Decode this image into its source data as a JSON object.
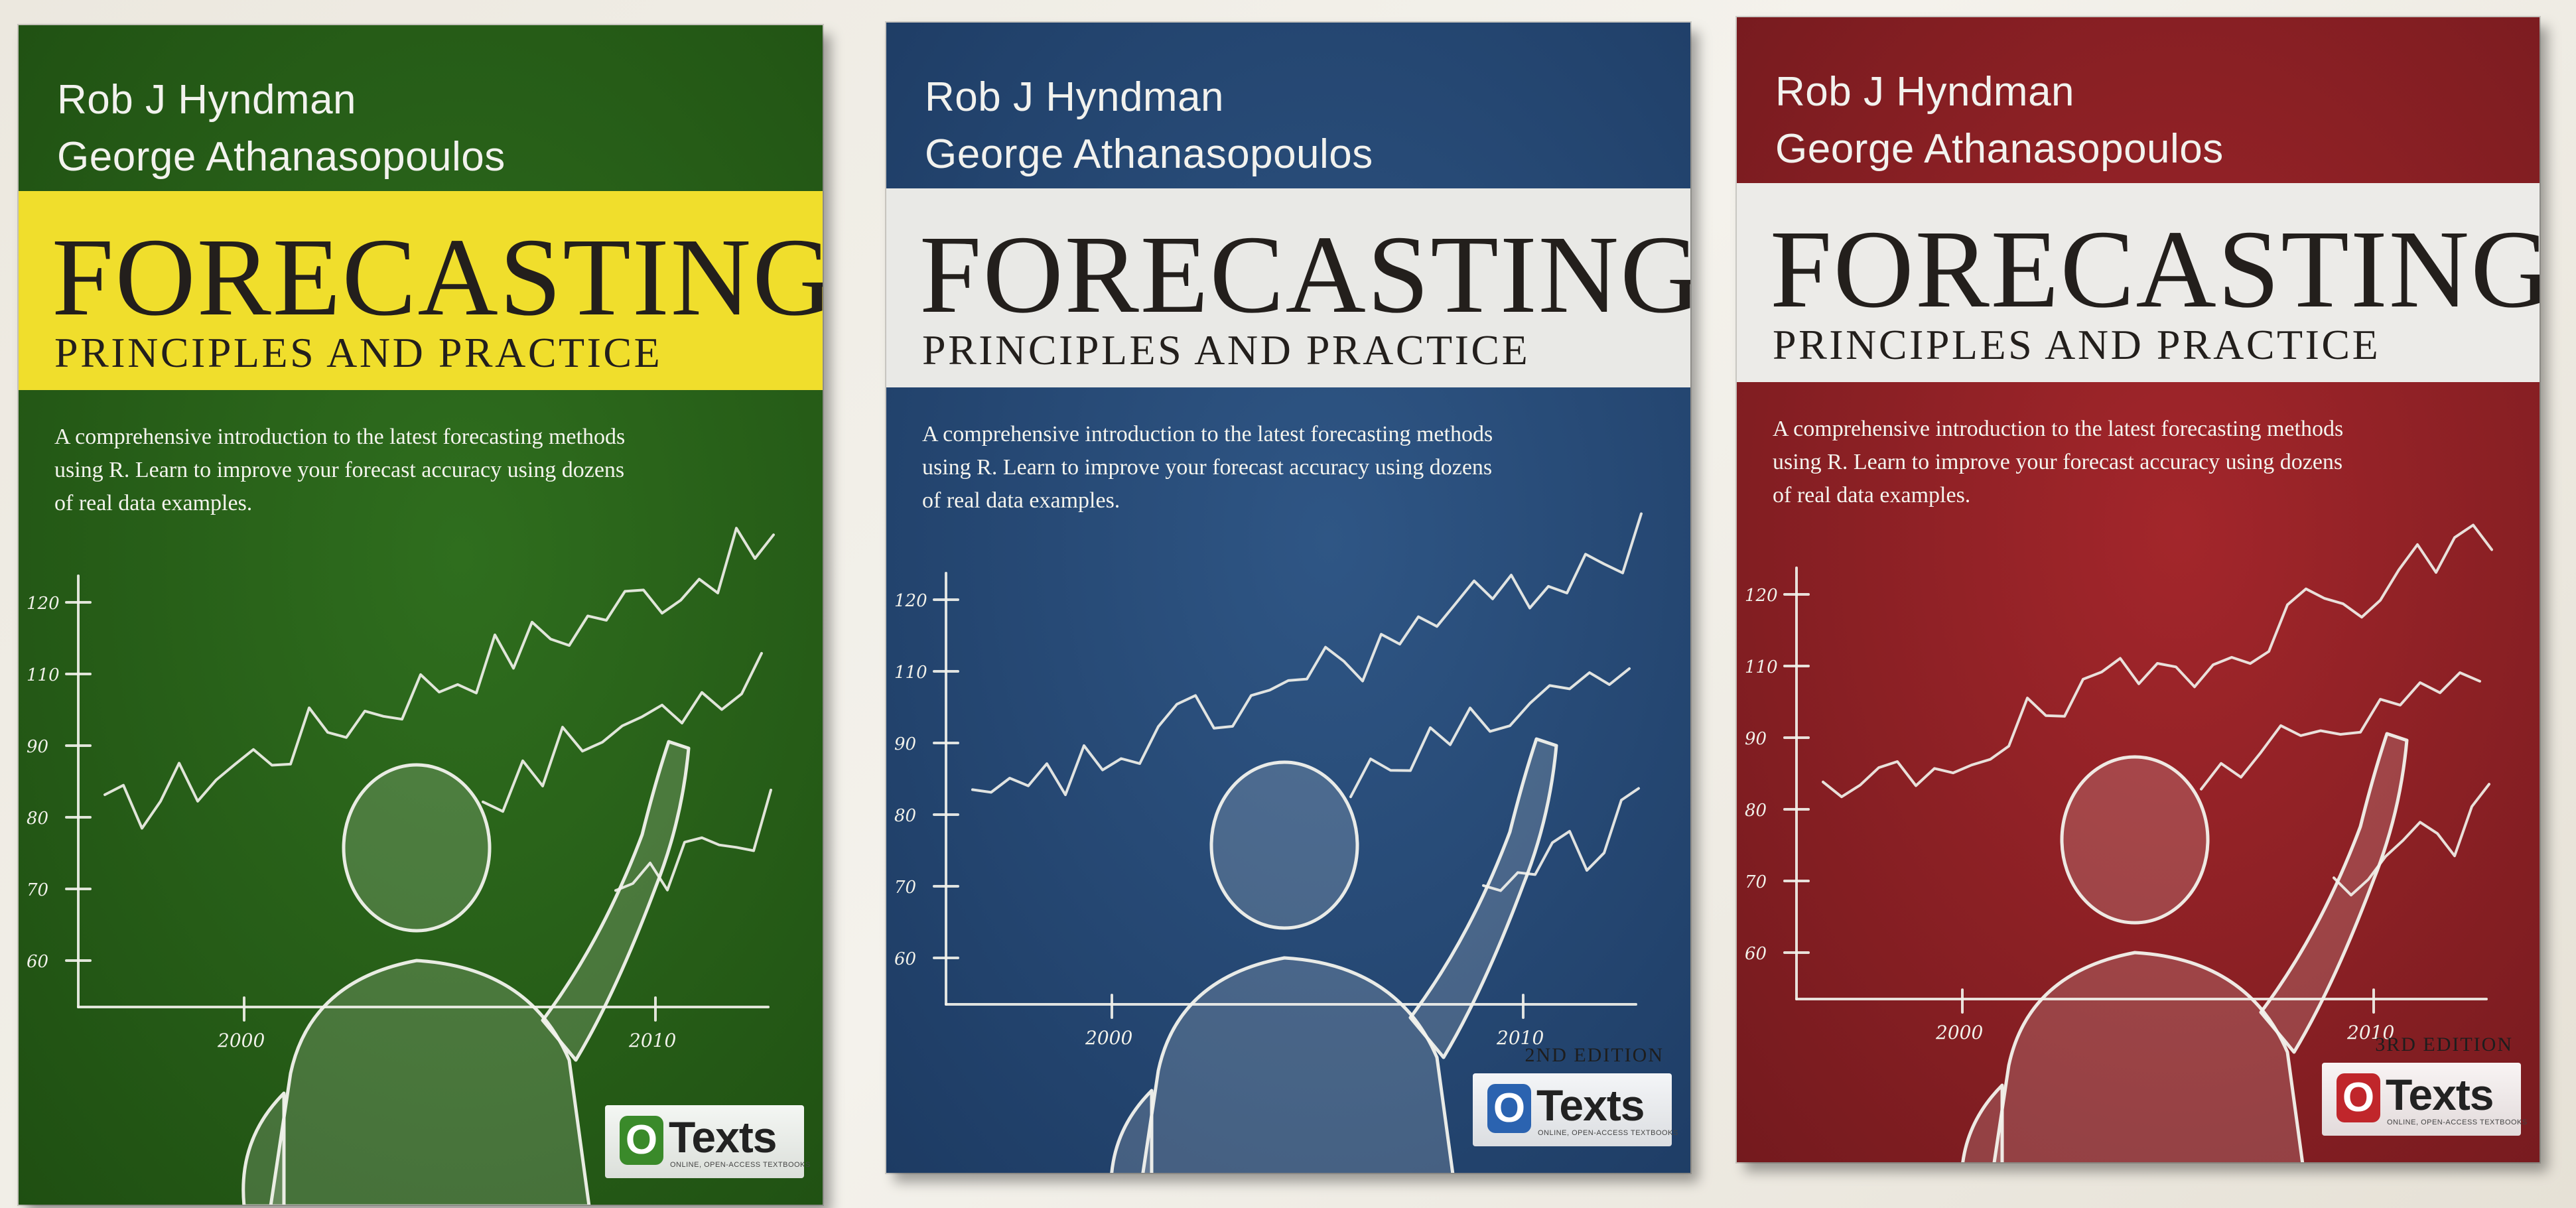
{
  "books": [
    {
      "authors": [
        "Rob J Hyndman",
        "George Athanasopoulos"
      ],
      "title": "FORECASTING",
      "subtitle": "PRINCIPLES AND PRACTICE",
      "blurb_lines": [
        "A comprehensive introduction to the latest forecasting methods",
        "using R. Learn to improve your forecast accuracy using dozens",
        "of real data examples."
      ],
      "edition": "",
      "y_ticks": [
        "120",
        "110",
        "90",
        "80",
        "70",
        "60"
      ],
      "x_ticks": [
        "2000",
        "2010"
      ],
      "publisher": "Texts",
      "publisher_mark": "O",
      "publisher_tagline": "ONLINE, OPEN-ACCESS TEXTBOOKS",
      "colors": {
        "cover": "#2f6e1e",
        "cover_dark": "#1f4f12",
        "band": "#f0de2c",
        "logo_mark": "#3a8a2a"
      }
    },
    {
      "authors": [
        "Rob J Hyndman",
        "George Athanasopoulos"
      ],
      "title": "FORECASTING",
      "subtitle": "PRINCIPLES AND PRACTICE",
      "blurb_lines": [
        "A comprehensive introduction to the latest forecasting methods",
        "using R. Learn to improve your forecast accuracy using dozens",
        "of real data examples."
      ],
      "edition": "2ND EDITION",
      "y_ticks": [
        "120",
        "110",
        "90",
        "80",
        "70",
        "60"
      ],
      "x_ticks": [
        "2000",
        "2010"
      ],
      "publisher": "Texts",
      "publisher_mark": "O",
      "publisher_tagline": "ONLINE, OPEN-ACCESS TEXTBOOKS",
      "colors": {
        "cover": "#2f5685",
        "cover_dark": "#1d3b63",
        "band": "#e9e9e6",
        "logo_mark": "#2b63b0"
      }
    },
    {
      "authors": [
        "Rob J Hyndman",
        "George Athanasopoulos"
      ],
      "title": "FORECASTING",
      "subtitle": "PRINCIPLES AND PRACTICE",
      "blurb_lines": [
        "A comprehensive introduction to the latest forecasting methods",
        "using R. Learn to improve your forecast accuracy using dozens",
        "of real data examples."
      ],
      "edition": "3RD EDITION",
      "y_ticks": [
        "120",
        "110",
        "90",
        "80",
        "70",
        "60"
      ],
      "x_ticks": [
        "2000",
        "2010"
      ],
      "publisher": "Texts",
      "publisher_mark": "O",
      "publisher_tagline": "ONLINE, OPEN-ACCESS TEXTBOOKS",
      "colors": {
        "cover": "#a3262b",
        "cover_dark": "#741a1e",
        "band": "#ecebe8",
        "logo_mark": "#c0262b"
      }
    }
  ]
}
